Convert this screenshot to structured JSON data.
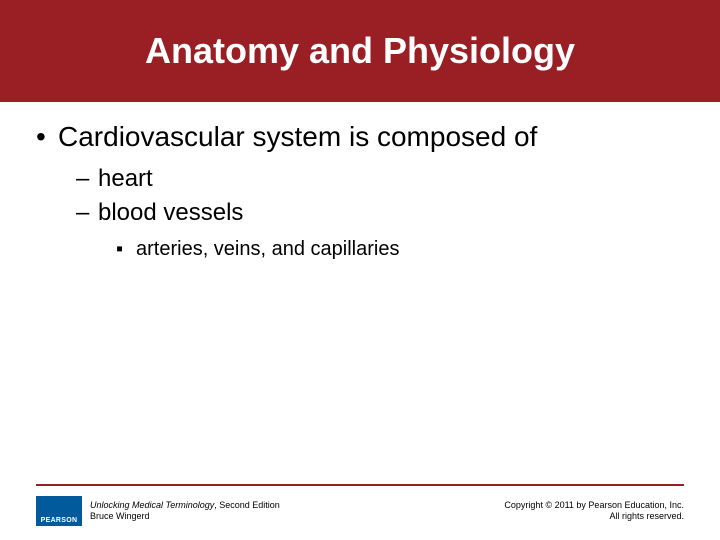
{
  "colors": {
    "band": "#9a1f24",
    "title_text": "#ffffff",
    "body_text": "#000000",
    "rule": "#9a1f24",
    "logo_bg": "#005a9c",
    "logo_text": "#ffffff",
    "page_bg": "#ffffff"
  },
  "title": "Anatomy and Physiology",
  "bullets": {
    "l1": {
      "marker": "•",
      "text": "Cardiovascular system is composed of"
    },
    "l2a": {
      "marker": "–",
      "text": "heart"
    },
    "l2b": {
      "marker": "–",
      "text": "blood vessels"
    },
    "l3": {
      "marker": "▪",
      "text": "arteries, veins, and capillaries"
    }
  },
  "footer": {
    "logo_text": "PEARSON",
    "book_title_italic": "Unlocking Medical Terminology",
    "book_title_rest": ", Second Edition",
    "author": "Bruce Wingerd",
    "copyright_line1": "Copyright © 2011 by Pearson Education, Inc.",
    "copyright_line2": "All rights reserved."
  },
  "typography": {
    "title_fontsize": 36,
    "l1_fontsize": 28,
    "l2_fontsize": 24,
    "l3_fontsize": 20,
    "footer_fontsize": 9
  }
}
